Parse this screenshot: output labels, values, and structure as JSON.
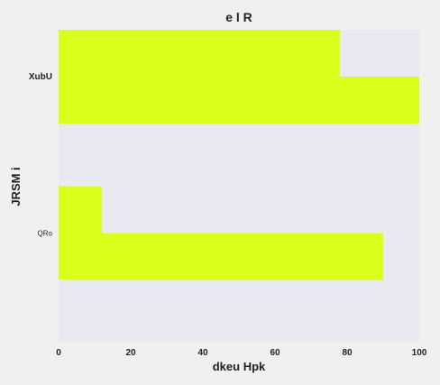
{
  "chart_data": {
    "type": "bar",
    "orientation": "horizontal",
    "title": "e  l R",
    "xlabel": "dkeu  Hpk",
    "ylabel": "JRSM i",
    "categories": [
      "XubU",
      "QRo"
    ],
    "series": [
      {
        "values": [
          78,
          12
        ]
      },
      {
        "values": [
          100,
          90
        ]
      }
    ],
    "xlim": [
      0,
      100
    ],
    "xticks": [
      0,
      20,
      40,
      60,
      80,
      100
    ],
    "grid": false,
    "bar_color": "#dbff1a",
    "plot_background": "#e9e9f1",
    "figure_background": "#f0f0f0"
  }
}
